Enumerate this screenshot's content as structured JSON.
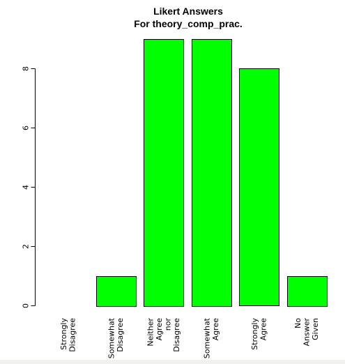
{
  "chart_data": {
    "type": "bar",
    "title": "Likert Answers",
    "subtitle": "For theory_comp_prac.",
    "xlabel": "",
    "ylabel": "",
    "categories": [
      [
        "Strongly",
        "Disagree"
      ],
      [
        "Somewhat",
        "Disagree"
      ],
      [
        "Neither",
        "Agree",
        "nor",
        "Disagree"
      ],
      [
        "Somewhat",
        "Agree"
      ],
      [
        "Strongly",
        "Agree"
      ],
      [
        "No",
        "Answer",
        "Given"
      ]
    ],
    "values": [
      0,
      1,
      9,
      9,
      8,
      1
    ],
    "yticks": [
      0,
      2,
      4,
      6,
      8
    ],
    "ylim": [
      0,
      9
    ],
    "grid": false,
    "legend": "none",
    "bar_color": "#00ff00",
    "bar_border_color": "#000000"
  }
}
